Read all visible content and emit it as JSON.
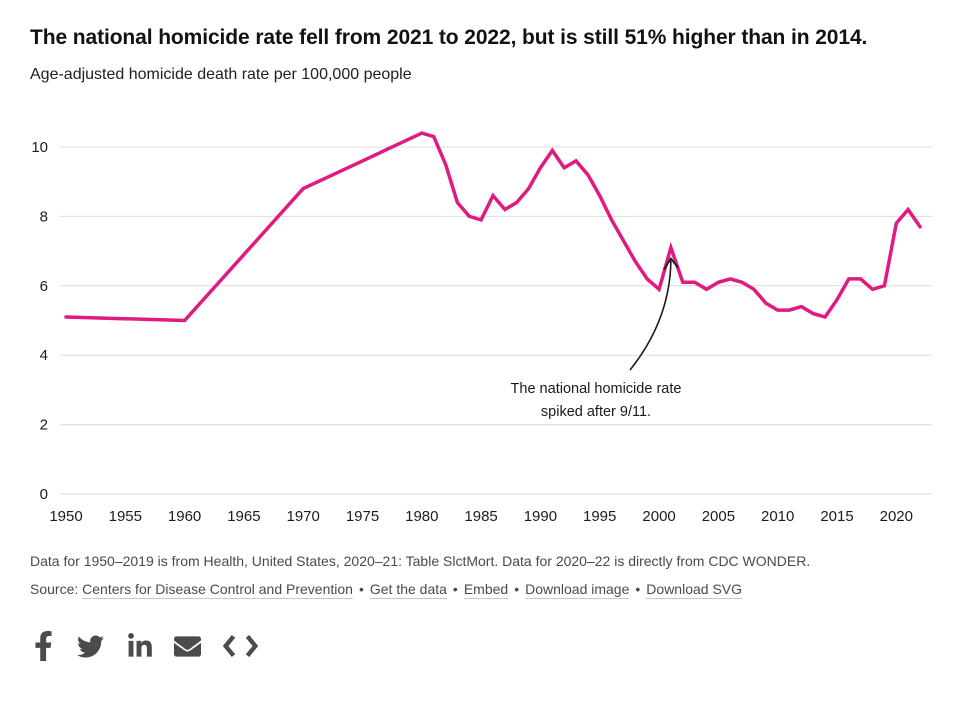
{
  "header": {
    "title": "The national homicide rate fell from 2021 to 2022, but is still 51% higher than in 2014.",
    "subtitle": "Age-adjusted homicide death rate per 100,000 people"
  },
  "chart_data": {
    "type": "line",
    "title": "The national homicide rate fell from 2021 to 2022, but is still 51% higher than in 2014.",
    "ylabel": "Age-adjusted homicide death rate per 100,000 people",
    "xlabel": "",
    "xlim": [
      1950,
      2022
    ],
    "ylim": [
      0,
      11
    ],
    "grid": true,
    "legend": "none",
    "x_ticks": [
      1950,
      1955,
      1960,
      1965,
      1970,
      1975,
      1980,
      1985,
      1990,
      1995,
      2000,
      2005,
      2010,
      2015,
      2020
    ],
    "y_ticks": [
      0,
      2,
      4,
      6,
      8,
      10
    ],
    "line_color": "#e01a80",
    "grid_color": "#dcdcdc",
    "axis_label_color": "#1c1c1c",
    "series": [
      {
        "name": "Age-adjusted homicide death rate per 100,000 people",
        "points": [
          [
            1950,
            5.1
          ],
          [
            1960,
            5.0
          ],
          [
            1970,
            8.8
          ],
          [
            1975,
            9.6
          ],
          [
            1980,
            10.4
          ],
          [
            1981,
            10.3
          ],
          [
            1982,
            9.5
          ],
          [
            1983,
            8.4
          ],
          [
            1984,
            8.0
          ],
          [
            1985,
            7.9
          ],
          [
            1986,
            8.6
          ],
          [
            1987,
            8.2
          ],
          [
            1988,
            8.4
          ],
          [
            1989,
            8.8
          ],
          [
            1990,
            9.4
          ],
          [
            1991,
            9.9
          ],
          [
            1992,
            9.4
          ],
          [
            1993,
            9.6
          ],
          [
            1994,
            9.2
          ],
          [
            1995,
            8.6
          ],
          [
            1996,
            7.9
          ],
          [
            1997,
            7.3
          ],
          [
            1998,
            6.7
          ],
          [
            1999,
            6.2
          ],
          [
            2000,
            5.9
          ],
          [
            2001,
            7.1
          ],
          [
            2002,
            6.1
          ],
          [
            2003,
            6.1
          ],
          [
            2004,
            5.9
          ],
          [
            2005,
            6.1
          ],
          [
            2006,
            6.2
          ],
          [
            2007,
            6.1
          ],
          [
            2008,
            5.9
          ],
          [
            2009,
            5.5
          ],
          [
            2010,
            5.3
          ],
          [
            2011,
            5.3
          ],
          [
            2012,
            5.4
          ],
          [
            2013,
            5.2
          ],
          [
            2014,
            5.1
          ],
          [
            2015,
            5.6
          ],
          [
            2016,
            6.2
          ],
          [
            2017,
            6.2
          ],
          [
            2018,
            5.9
          ],
          [
            2019,
            6.0
          ],
          [
            2020,
            7.8
          ],
          [
            2021,
            8.2
          ],
          [
            2022,
            7.7
          ]
        ]
      }
    ],
    "annotation": {
      "text_line1": "The national homicide rate",
      "text_line2": "spiked after 9/11.",
      "target_year": 2001,
      "target_value": 7.1,
      "color": "#1a1a1a"
    }
  },
  "footer": {
    "note": "Data for 1950–2019 is from Health, United States, 2020–21: Table SlctMort. Data for 2020–22 is directly from CDC WONDER.",
    "source_label": "Source:",
    "source_link": "Centers for Disease Control and Prevention",
    "separator": "•",
    "links": [
      "Get the data",
      "Embed",
      "Download image",
      "Download SVG"
    ]
  },
  "social": {
    "icons": [
      "facebook-icon",
      "twitter-icon",
      "linkedin-icon",
      "email-icon",
      "embed-code-icon"
    ]
  }
}
